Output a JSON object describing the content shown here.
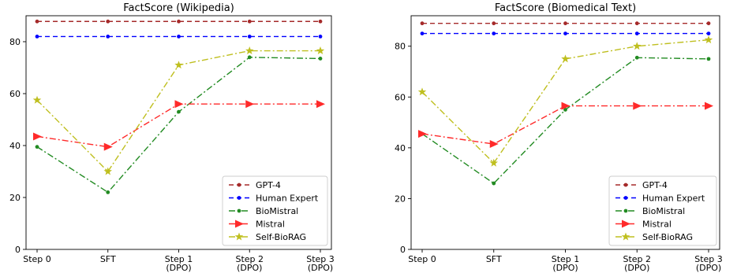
{
  "chart_data": [
    {
      "type": "line",
      "title": "FactScore (Wikipedia)",
      "xlabel": "",
      "ylabel": "",
      "categories": [
        "Step 0",
        "SFT",
        "Step 1\n(DPO)",
        "Step 2\n(DPO)",
        "Step 3\n(DPO)"
      ],
      "ylim": [
        0,
        90
      ],
      "yticks": [
        0,
        20,
        40,
        60,
        80
      ],
      "grid": false,
      "legend_position": "lower-right",
      "series": [
        {
          "name": "GPT-4",
          "values": [
            87.8,
            87.8,
            87.8,
            87.8,
            87.8
          ],
          "color": "#a52a2a",
          "dash": "6,4",
          "marker": "dot"
        },
        {
          "name": "Human Expert",
          "values": [
            82.0,
            82.0,
            82.0,
            82.0,
            82.0
          ],
          "color": "#0000ff",
          "dash": "6,4",
          "marker": "dot"
        },
        {
          "name": "BioMistral",
          "values": [
            39.5,
            22.0,
            53.0,
            74.0,
            73.5
          ],
          "color": "#228b22",
          "dash": "8,3,2,3",
          "marker": "dot"
        },
        {
          "name": "Mistral",
          "values": [
            43.5,
            39.5,
            56.0,
            56.0,
            56.0
          ],
          "color": "#ff2a2a",
          "dash": "8,3,2,3",
          "marker": "triangle"
        },
        {
          "name": "Self-BioRAG",
          "values": [
            57.5,
            30.0,
            71.0,
            76.5,
            76.5
          ],
          "color": "#bfbf1f",
          "dash": "8,3,2,3",
          "marker": "star"
        }
      ]
    },
    {
      "type": "line",
      "title": "FactScore (Biomedical Text)",
      "xlabel": "",
      "ylabel": "",
      "categories": [
        "Step 0",
        "SFT",
        "Step 1\n(DPO)",
        "Step 2\n(DPO)",
        "Step 3\n(DPO)"
      ],
      "ylim": [
        0,
        92
      ],
      "yticks": [
        0,
        20,
        40,
        60,
        80
      ],
      "grid": false,
      "legend_position": "lower-right",
      "series": [
        {
          "name": "GPT-4",
          "values": [
            89.0,
            89.0,
            89.0,
            89.0,
            89.0
          ],
          "color": "#a52a2a",
          "dash": "6,4",
          "marker": "dot"
        },
        {
          "name": "Human Expert",
          "values": [
            85.0,
            85.0,
            85.0,
            85.0,
            85.0
          ],
          "color": "#0000ff",
          "dash": "6,4",
          "marker": "dot"
        },
        {
          "name": "BioMistral",
          "values": [
            45.5,
            26.0,
            55.0,
            75.5,
            75.0
          ],
          "color": "#228b22",
          "dash": "8,3,2,3",
          "marker": "dot"
        },
        {
          "name": "Mistral",
          "values": [
            45.5,
            41.5,
            56.5,
            56.5,
            56.5
          ],
          "color": "#ff2a2a",
          "dash": "8,3,2,3",
          "marker": "triangle"
        },
        {
          "name": "Self-BioRAG",
          "values": [
            62.0,
            34.0,
            75.0,
            80.0,
            82.5
          ],
          "color": "#bfbf1f",
          "dash": "8,3,2,3",
          "marker": "star"
        }
      ]
    }
  ]
}
